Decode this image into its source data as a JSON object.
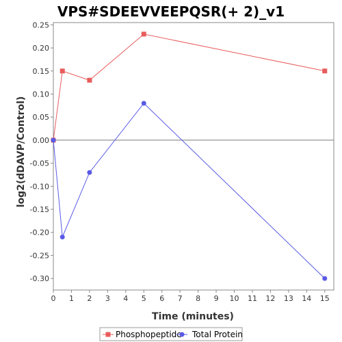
{
  "chart_data": {
    "type": "line",
    "title": "VPS#SDEEVVEEPQSR(+ 2)_v1",
    "xlabel": "Time (minutes)",
    "ylabel": "log2(dDAVP/Control)",
    "xlim": [
      0,
      15.5
    ],
    "ylim": [
      -0.325,
      0.255
    ],
    "xticks": [
      0,
      1,
      2,
      3,
      4,
      5,
      6,
      7,
      8,
      9,
      10,
      11,
      12,
      13,
      14,
      15
    ],
    "yticks": [
      0.25,
      0.2,
      0.15,
      0.1,
      0.05,
      0.0,
      -0.05,
      -0.1,
      -0.15,
      -0.2,
      -0.25,
      -0.3
    ],
    "ytick_labels": [
      "0.25",
      "0.20",
      "0.15",
      "0.10",
      "0.05",
      "0.00",
      "-0.05",
      "-0.10",
      "-0.15",
      "-0.20",
      "-0.25",
      "-0.30"
    ],
    "grid": false,
    "zero_line": true,
    "legend_position": "bottom",
    "series": [
      {
        "name": "Phosphopeptide",
        "color": "#e85c5c",
        "marker": "square",
        "x": [
          0,
          0.5,
          2,
          5,
          15
        ],
        "y": [
          0.0,
          0.15,
          0.13,
          0.23,
          0.15
        ]
      },
      {
        "name": "Total Protein",
        "color": "#5a5ae6",
        "marker": "circle",
        "x": [
          0,
          0.5,
          2,
          5,
          15
        ],
        "y": [
          0.0,
          -0.21,
          -0.07,
          0.08,
          -0.3
        ]
      }
    ]
  }
}
